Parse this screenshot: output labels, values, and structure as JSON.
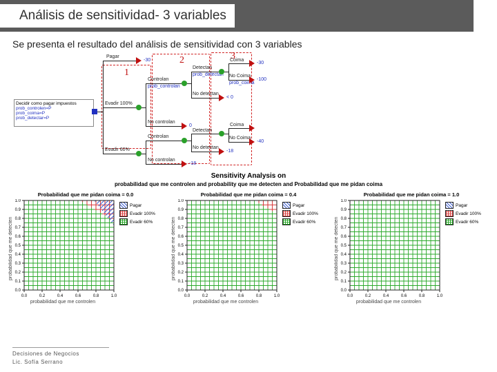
{
  "slide": {
    "title": "Análisis de sensitividad- 3 variables",
    "subtitle": "Se presenta el resultado del análisis de sensitividad con 3 variables"
  },
  "callouts": {
    "c1": "1",
    "c2": "2",
    "c3": "3"
  },
  "tree": {
    "root": "Decidir como pagar impuestos",
    "root_sub1": "prob_controlen=P",
    "root_sub2": "prob_coima=P",
    "root_sub3": "prob_detectar=P",
    "pagar": "Pagar",
    "pagar_val": "-30",
    "evadir100": "Evadir 100%",
    "evadir60": "Evadir 60%",
    "controlan": "Controlan",
    "no_controlan": "No controlan",
    "prob_controlan": "prob_controlan",
    "detectan": "Detectan",
    "no_detectan": "No detectan",
    "prob_detectan": "prob_detectan",
    "coima": "Coima",
    "no_coima": "No Coima",
    "prob_coima": "prob_coima",
    "lt0": "< 0",
    "eq0": "0",
    "n100": "-100",
    "n40": "-40",
    "n18": "-18"
  },
  "sensitivity": {
    "title": "Sensitivity Analysis on",
    "subtitle": "probabilidad que me controlen and probability que me detecten and Probabilidad que me pidan coima",
    "xlabel": "probabilidad que me controlen",
    "ylabel": "probabilidad que me detecten",
    "panels": [
      {
        "title": "Probabilidad que me pidan coima = 0.0"
      },
      {
        "title": "Probabilidad que me pidan coima = 0.4"
      },
      {
        "title": "Probabilidad que me pidan coima = 1.0"
      }
    ],
    "legend": [
      {
        "label": "Pagar",
        "fill": "diag-blue"
      },
      {
        "label": "Evadir 100%",
        "fill": "grid-red"
      },
      {
        "label": "Evadir 60%",
        "fill": "grid-green"
      }
    ],
    "axis": {
      "min": 0.0,
      "max": 1.0,
      "ticks": [
        "0.0",
        "0.2",
        "0.4",
        "0.6",
        "0.8",
        "1.0"
      ],
      "yticks": [
        "0.0",
        "0.1",
        "0.2",
        "0.3",
        "0.4",
        "0.5",
        "0.6",
        "0.7",
        "0.8",
        "0.9",
        "1.0"
      ]
    },
    "regions": [
      {
        "evadir60_cutoff_x": 0.62
      },
      {
        "evadir60_cutoff_x": 0.75
      },
      {
        "evadir60_cutoff_x": 1.01
      }
    ],
    "colors": {
      "grid_green": "#2aa82a",
      "grid_red": "#d84040",
      "diag_blue": "#4060d0",
      "axis": "#222222",
      "bg": "#ffffff"
    }
  },
  "footer": {
    "line1": "Decisiones de Negocios",
    "line2": "Lic. Sofía Serrano"
  }
}
